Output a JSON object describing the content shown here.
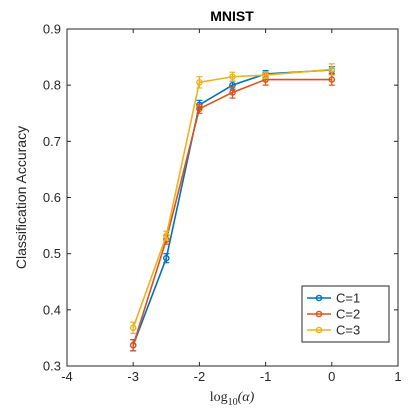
{
  "chart_data": {
    "type": "line",
    "title": "MNIST",
    "xlabel": "log10(α)",
    "xlabel_parts": {
      "base": "log",
      "sub": "10",
      "arg": "(α)"
    },
    "ylabel": "Classification Accuracy",
    "xlim": [
      -4,
      1
    ],
    "ylim": [
      0.3,
      0.9
    ],
    "xticks": [
      -4,
      -3,
      -2,
      -1,
      0,
      1
    ],
    "xtick_labels": [
      "-4",
      "-3",
      "-2",
      "-1",
      "0",
      "1"
    ],
    "yticks": [
      0.3,
      0.4,
      0.5,
      0.6,
      0.7,
      0.8,
      0.9
    ],
    "ytick_labels": [
      "0.3",
      "0.4",
      "0.5",
      "0.6",
      "0.7",
      "0.8",
      "0.9"
    ],
    "grid": false,
    "legend_position": "bottom-right",
    "x": [
      -3,
      -2.5,
      -2,
      -1.5,
      -1,
      0
    ],
    "series": [
      {
        "name": "C=1",
        "color": "#0072BD",
        "values": [
          0.337,
          0.492,
          0.765,
          0.8,
          0.82,
          0.827
        ],
        "errors": [
          0.01,
          0.008,
          0.008,
          0.007,
          0.006,
          0.006
        ]
      },
      {
        "name": "C=2",
        "color": "#D95319",
        "values": [
          0.337,
          0.525,
          0.758,
          0.787,
          0.81,
          0.81
        ],
        "errors": [
          0.01,
          0.008,
          0.008,
          0.01,
          0.01,
          0.01
        ]
      },
      {
        "name": "C=3",
        "color": "#EDB120",
        "values": [
          0.368,
          0.532,
          0.805,
          0.815,
          0.818,
          0.828
        ],
        "errors": [
          0.01,
          0.008,
          0.01,
          0.008,
          0.006,
          0.01
        ]
      }
    ]
  }
}
